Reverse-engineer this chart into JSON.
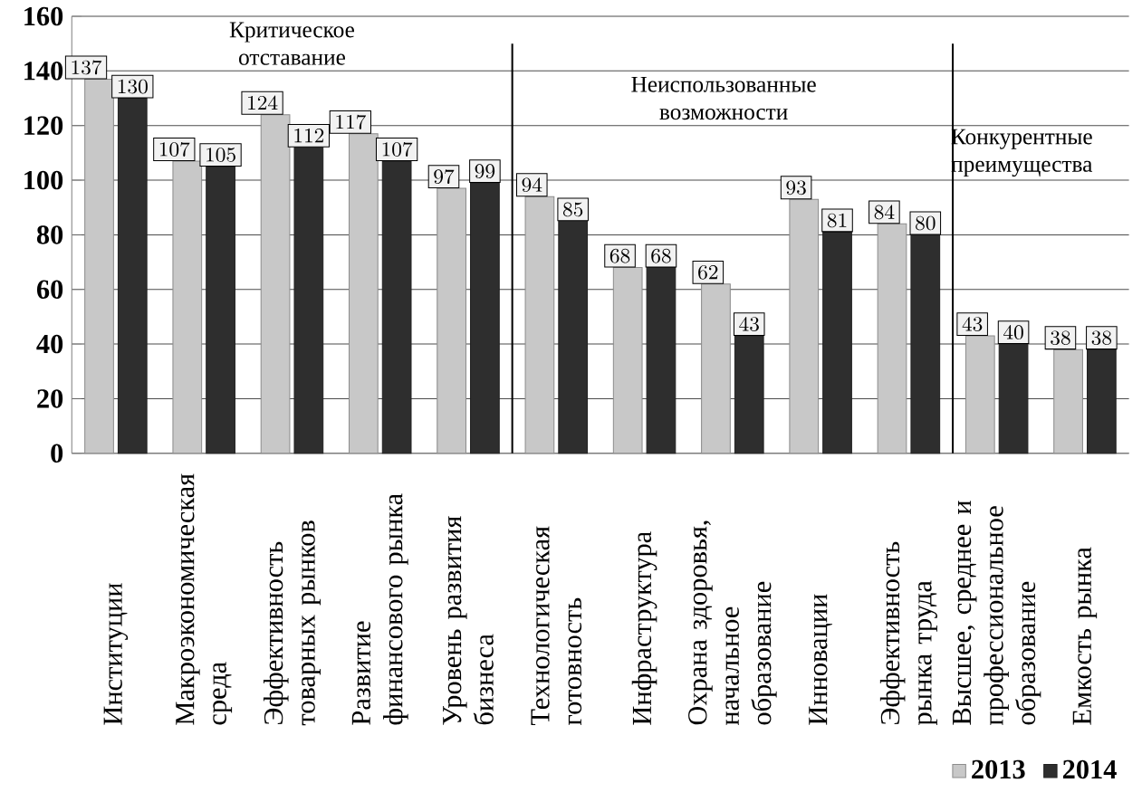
{
  "chart_data": {
    "type": "bar",
    "categories": [
      "Институции",
      "Макроэкономическая среда",
      "Эффективность товарных рынков",
      "Развитие финансового рынка",
      "Уровень развития бизнеса",
      "Технологическая готовность",
      "Инфраструктура",
      "Охрана здоровья, начальное образование",
      "Инновации",
      "Эффективность рынка труда",
      "Высшее, среднее и профессиональное образование",
      "Емкость рынка"
    ],
    "series": [
      {
        "name": "2013",
        "color": "#c8c8c8",
        "values": [
          137,
          107,
          124,
          117,
          97,
          94,
          68,
          62,
          93,
          84,
          43,
          38
        ]
      },
      {
        "name": "2014",
        "color": "#2e2e2e",
        "values": [
          130,
          105,
          112,
          107,
          99,
          85,
          68,
          43,
          81,
          80,
          40,
          38
        ]
      }
    ],
    "ylim": [
      0,
      160
    ],
    "yticks": [
      0,
      20,
      40,
      60,
      80,
      100,
      120,
      140,
      160
    ],
    "grid": "y",
    "legend": "bottom right",
    "data_labels": true,
    "annotations": [
      "Критическое отставание",
      "Неиспользованные возможности",
      "Конкурентные преимущества"
    ]
  }
}
